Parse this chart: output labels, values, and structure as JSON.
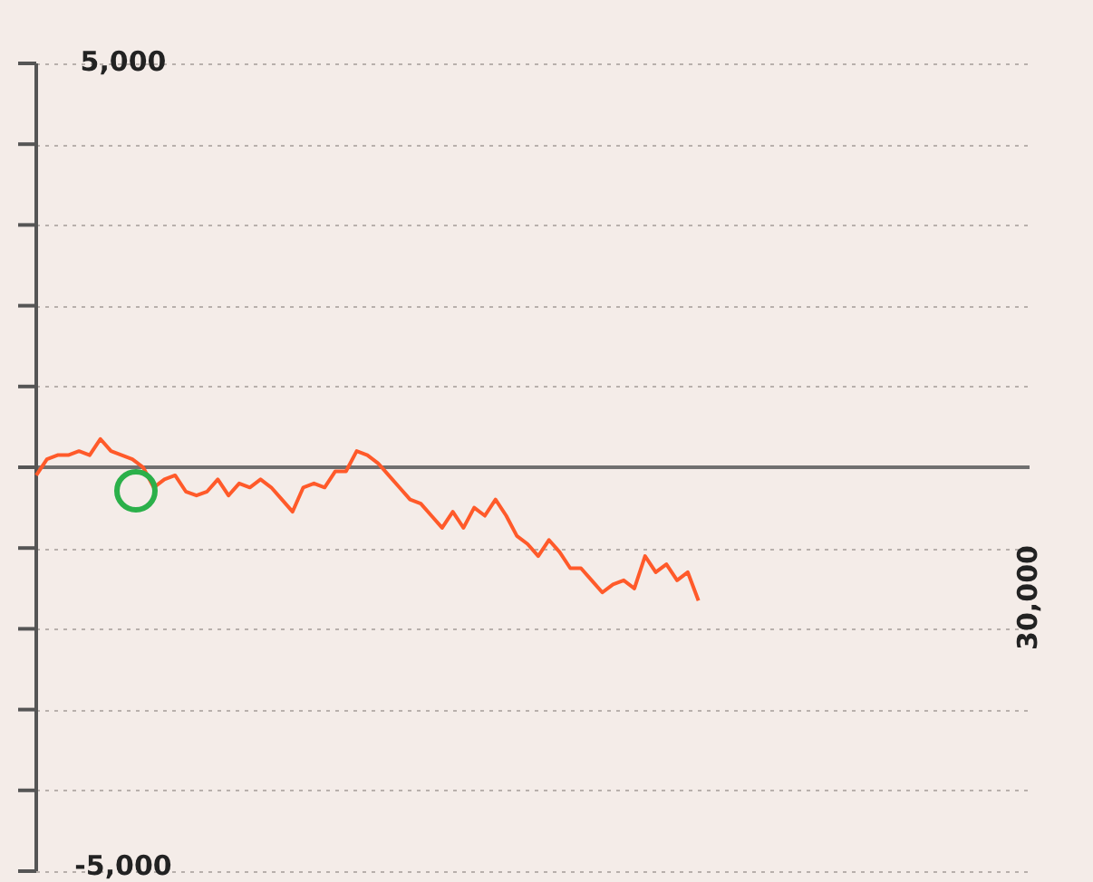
{
  "chart_data": {
    "type": "line",
    "categories": [
      null,
      null,
      null,
      null,
      null,
      null,
      null,
      null,
      null,
      null,
      null,
      null,
      null,
      null,
      null,
      null,
      null,
      null,
      null,
      null,
      null,
      null,
      null,
      null,
      null,
      null,
      null,
      null,
      null,
      null,
      null,
      null,
      null,
      null,
      null,
      null,
      null,
      null,
      null,
      null,
      null,
      null,
      null,
      null,
      null,
      null,
      null,
      null,
      null,
      null,
      null,
      null,
      null,
      null,
      null,
      null,
      null,
      null,
      null,
      null,
      null,
      null,
      null,
      null,
      null,
      null,
      null,
      null,
      null,
      null,
      null,
      null,
      null,
      null,
      null,
      null,
      null,
      null,
      null,
      null,
      null,
      null,
      null,
      null,
      null,
      null,
      null,
      null,
      null,
      null,
      null,
      null,
      null,
      null
    ],
    "annotations": [
      "30,000"
    ],
    "series": [
      {
        "color": "#ff5a2a",
        "values": [
          -100,
          100,
          150,
          150,
          200,
          150,
          350,
          200,
          150,
          100,
          0,
          -250,
          -150,
          -100,
          -300,
          -350,
          -300,
          -150,
          -350,
          -200,
          -250,
          -150,
          -250,
          -400,
          -550,
          -250,
          -200,
          -250,
          -50,
          -50,
          200,
          150,
          50,
          -100,
          -250,
          -400,
          -450,
          -600,
          -750,
          -550,
          -750,
          -500,
          -600,
          -400,
          -600,
          -850,
          -950,
          -1100,
          -900,
          -1050,
          -1250,
          -1250,
          -1400,
          -1550,
          -1450,
          -1400,
          -1500,
          -1100,
          -1300,
          -1200,
          -1400,
          -1300,
          -1650,
          null,
          null,
          null,
          null,
          null,
          null,
          null,
          null,
          null,
          null,
          null,
          null,
          null,
          null,
          null,
          null,
          null,
          null,
          null,
          null,
          null,
          null,
          null,
          null,
          null,
          null,
          null,
          null,
          null,
          null,
          null
        ]
      }
    ],
    "ylim": [
      -5000,
      5000
    ],
    "yticks": [
      {
        "value": -5000,
        "label": "-5,000"
      },
      {
        "value": -4000,
        "label": null
      },
      {
        "value": -3000,
        "label": null
      },
      {
        "value": -2000,
        "label": null
      },
      {
        "value": -1000,
        "label": null
      },
      {
        "value": 0,
        "label": null
      },
      {
        "value": 1000,
        "label": null
      },
      {
        "value": 2000,
        "label": null
      },
      {
        "value": 3000,
        "label": null
      },
      {
        "value": 4000,
        "label": null
      },
      {
        "value": 5000,
        "label": "5,000"
      }
    ],
    "ref_lines": [
      {
        "axis": "y",
        "value": 0,
        "color": "#707070"
      }
    ],
    "grid": "y",
    "legend": false,
    "marker": "none",
    "line_style": "solid"
  }
}
